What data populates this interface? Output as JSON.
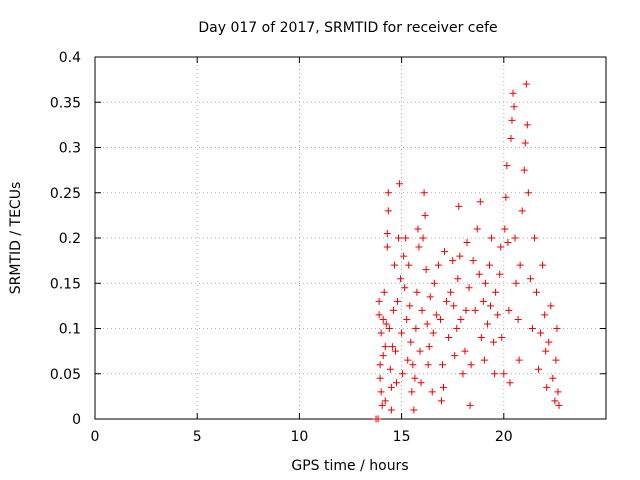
{
  "chart_data": {
    "type": "scatter",
    "title": "Day 017 of 2017, SRMTID for receiver cefe",
    "xlabel": "GPS time / hours",
    "ylabel": "SRMTID / TECUs",
    "xlim": [
      0,
      25
    ],
    "ylim": [
      0,
      0.4
    ],
    "xticks": [
      0,
      5,
      10,
      15,
      20
    ],
    "xtick_labels": [
      "0",
      "5",
      "10",
      "15",
      "20"
    ],
    "yticks": [
      0,
      0.05,
      0.1,
      0.15,
      0.2,
      0.25,
      0.3,
      0.35,
      0.4
    ],
    "ytick_labels": [
      "0",
      "0.05",
      "0.1",
      "0.15",
      "0.2",
      "0.25",
      "0.3",
      "0.35",
      "0.4"
    ],
    "grid": true,
    "marker": "+",
    "series": [
      {
        "name": "SRMTID",
        "color": "#ee0000",
        "points": [
          [
            13.75,
            0.0
          ],
          [
            13.85,
            0.0
          ],
          [
            13.9,
            0.13
          ],
          [
            13.9,
            0.115
          ],
          [
            13.95,
            0.06
          ],
          [
            13.95,
            0.045
          ],
          [
            14.0,
            0.095
          ],
          [
            14.0,
            0.03
          ],
          [
            14.05,
            0.015
          ],
          [
            14.1,
            0.07
          ],
          [
            14.1,
            0.11
          ],
          [
            14.15,
            0.14
          ],
          [
            14.2,
            0.08
          ],
          [
            14.2,
            0.02
          ],
          [
            14.25,
            0.105
          ],
          [
            14.3,
            0.19
          ],
          [
            14.3,
            0.205
          ],
          [
            14.35,
            0.23
          ],
          [
            14.35,
            0.25
          ],
          [
            14.4,
            0.1
          ],
          [
            14.45,
            0.055
          ],
          [
            14.5,
            0.01
          ],
          [
            14.5,
            0.035
          ],
          [
            14.55,
            0.08
          ],
          [
            14.6,
            0.12
          ],
          [
            14.65,
            0.17
          ],
          [
            14.7,
            0.075
          ],
          [
            14.75,
            0.04
          ],
          [
            14.8,
            0.13
          ],
          [
            14.85,
            0.2
          ],
          [
            14.9,
            0.26
          ],
          [
            14.95,
            0.155
          ],
          [
            15.0,
            0.095
          ],
          [
            15.05,
            0.05
          ],
          [
            15.1,
            0.18
          ],
          [
            15.15,
            0.145
          ],
          [
            15.2,
            0.2
          ],
          [
            15.25,
            0.11
          ],
          [
            15.3,
            0.065
          ],
          [
            15.35,
            0.17
          ],
          [
            15.4,
            0.125
          ],
          [
            15.45,
            0.085
          ],
          [
            15.5,
            0.03
          ],
          [
            15.55,
            0.06
          ],
          [
            15.6,
            0.01
          ],
          [
            15.65,
            0.045
          ],
          [
            15.7,
            0.1
          ],
          [
            15.75,
            0.14
          ],
          [
            15.8,
            0.21
          ],
          [
            15.85,
            0.19
          ],
          [
            15.9,
            0.075
          ],
          [
            15.95,
            0.04
          ],
          [
            16.0,
            0.12
          ],
          [
            16.05,
            0.2
          ],
          [
            16.1,
            0.25
          ],
          [
            16.15,
            0.225
          ],
          [
            16.2,
            0.165
          ],
          [
            16.25,
            0.105
          ],
          [
            16.3,
            0.06
          ],
          [
            16.35,
            0.08
          ],
          [
            16.4,
            0.135
          ],
          [
            16.5,
            0.03
          ],
          [
            16.55,
            0.095
          ],
          [
            16.6,
            0.15
          ],
          [
            16.7,
            0.115
          ],
          [
            16.8,
            0.17
          ],
          [
            16.9,
            0.11
          ],
          [
            16.95,
            0.02
          ],
          [
            17.0,
            0.06
          ],
          [
            17.05,
            0.035
          ],
          [
            17.1,
            0.185
          ],
          [
            17.2,
            0.13
          ],
          [
            17.3,
            0.09
          ],
          [
            17.4,
            0.14
          ],
          [
            17.5,
            0.175
          ],
          [
            17.55,
            0.125
          ],
          [
            17.6,
            0.07
          ],
          [
            17.7,
            0.1
          ],
          [
            17.75,
            0.155
          ],
          [
            17.8,
            0.235
          ],
          [
            17.85,
            0.18
          ],
          [
            17.9,
            0.11
          ],
          [
            18.0,
            0.05
          ],
          [
            18.1,
            0.075
          ],
          [
            18.15,
            0.12
          ],
          [
            18.2,
            0.195
          ],
          [
            18.3,
            0.145
          ],
          [
            18.35,
            0.015
          ],
          [
            18.4,
            0.06
          ],
          [
            18.5,
            0.175
          ],
          [
            18.6,
            0.12
          ],
          [
            18.7,
            0.21
          ],
          [
            18.8,
            0.16
          ],
          [
            18.85,
            0.24
          ],
          [
            18.9,
            0.09
          ],
          [
            19.0,
            0.13
          ],
          [
            19.05,
            0.065
          ],
          [
            19.1,
            0.15
          ],
          [
            19.2,
            0.105
          ],
          [
            19.3,
            0.17
          ],
          [
            19.35,
            0.125
          ],
          [
            19.4,
            0.2
          ],
          [
            19.5,
            0.085
          ],
          [
            19.55,
            0.05
          ],
          [
            19.6,
            0.14
          ],
          [
            19.7,
            0.115
          ],
          [
            19.8,
            0.16
          ],
          [
            19.85,
            0.19
          ],
          [
            19.9,
            0.09
          ],
          [
            20.0,
            0.05
          ],
          [
            20.05,
            0.21
          ],
          [
            20.1,
            0.245
          ],
          [
            20.15,
            0.28
          ],
          [
            20.2,
            0.195
          ],
          [
            20.25,
            0.12
          ],
          [
            20.3,
            0.04
          ],
          [
            20.35,
            0.31
          ],
          [
            20.4,
            0.33
          ],
          [
            20.45,
            0.36
          ],
          [
            20.5,
            0.345
          ],
          [
            20.55,
            0.2
          ],
          [
            20.6,
            0.15
          ],
          [
            20.7,
            0.11
          ],
          [
            20.75,
            0.065
          ],
          [
            20.8,
            0.17
          ],
          [
            20.9,
            0.23
          ],
          [
            21.0,
            0.275
          ],
          [
            21.05,
            0.305
          ],
          [
            21.1,
            0.37
          ],
          [
            21.15,
            0.325
          ],
          [
            21.2,
            0.25
          ],
          [
            21.3,
            0.155
          ],
          [
            21.4,
            0.1
          ],
          [
            21.5,
            0.2
          ],
          [
            21.6,
            0.14
          ],
          [
            21.7,
            0.055
          ],
          [
            21.8,
            0.095
          ],
          [
            21.9,
            0.17
          ],
          [
            22.0,
            0.115
          ],
          [
            22.05,
            0.075
          ],
          [
            22.1,
            0.035
          ],
          [
            22.2,
            0.085
          ],
          [
            22.3,
            0.125
          ],
          [
            22.4,
            0.045
          ],
          [
            22.5,
            0.02
          ],
          [
            22.55,
            0.065
          ],
          [
            22.6,
            0.1
          ],
          [
            22.65,
            0.03
          ],
          [
            22.7,
            0.015
          ]
        ]
      }
    ]
  }
}
